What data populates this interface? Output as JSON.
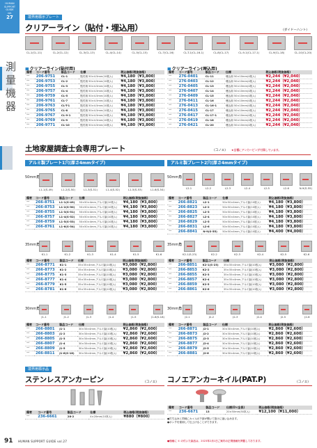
{
  "header": {
    "badge_lines": [
      "HUMAN",
      "SUPPORT",
      "GUIDE",
      "vol."
    ],
    "badge_num": "27",
    "section_tag": "境界用標示プレート",
    "title": "クリアーライン（貼付・埋込用）",
    "maker": "(ダイドーハント)"
  },
  "side_label": "測量機器",
  "clear_photos": [
    "CL-1(CL-11)",
    "CL-2(CL-12)",
    "CL-3(CL-13)",
    "CL-4(CL-14)",
    "CL-5(CL-15)",
    "CL-7(CL-16)",
    "CL-T-1(CL-16-1)",
    "CL-8(CL-17)",
    "CL-9-1(CL-17-1)",
    "CL-9(CL-18)",
    "CL-10(CL-20)"
  ],
  "clear_left": {
    "heading": "クリアーライン(貼付用)",
    "cols": [
      "備考",
      "コード番号",
      "製品コード",
      "仕様",
      "税込価格(税抜価格)"
    ],
    "rows": [
      [
        "—",
        "206-9751",
        "CL-1",
        "貼付用 50×4.5mm(10枚入)",
        "¥4,180（¥3,800）"
      ],
      [
        "—",
        "206-9753",
        "CL-2",
        "貼付用 50×4.5mm(10枚入)",
        "¥4,180（¥3,800）"
      ],
      [
        "—",
        "206-9755",
        "CL-3",
        "貼付用 50×4.5mm(10枚入)",
        "¥4,180（¥3,800）"
      ],
      [
        "—",
        "206-9757",
        "CL-4",
        "貼付用 50×4.5mm(10枚入)",
        "¥4,180（¥3,800）"
      ],
      [
        "—",
        "206-9759",
        "CL-5",
        "貼付用 50×4.5mm(10枚入)",
        "¥4,180（¥3,800）"
      ],
      [
        "—",
        "206-9761",
        "CL-7",
        "貼付用 50×4.5mm(10枚入)",
        "¥4,180（¥3,800）"
      ],
      [
        "—",
        "206-9763",
        "CL-T-1",
        "貼付用 50×4.5mm(10枚入)",
        "¥4,180（¥3,800）"
      ],
      [
        "—",
        "206-9765",
        "CL-8",
        "貼付用 50×4.5mm(10枚入)",
        "¥4,180（¥3,800）"
      ],
      [
        "—",
        "206-9767",
        "CL-9-1",
        "貼付用 50×4.5mm(10枚入)",
        "¥4,180（¥3,800）"
      ],
      [
        "—",
        "206-9769",
        "CL-9",
        "貼付用 50×4.5mm(10枚入)",
        "¥4,180（¥3,800）"
      ],
      [
        "—",
        "206-9771",
        "CL-10",
        "貼付用 50×4.5mm(10枚入)",
        "¥4,180（¥3,800）"
      ]
    ]
  },
  "clear_right": {
    "heading": "クリアーライン(埋込用)",
    "cols": [
      "備考",
      "コード番号",
      "製品コード",
      "仕様",
      "税込価格(税抜価格)"
    ],
    "rows": [
      [
        "—",
        "276-0401",
        "CL-11",
        "埋込用 50×10mm(4枚入)",
        "¥2,244（¥2,040）"
      ],
      [
        "—",
        "276-0403",
        "CL-12",
        "埋込用 50×10mm(4枚入)",
        "¥2,244（¥2,040）"
      ],
      [
        "—",
        "276-0405",
        "CL-13",
        "埋込用 50×10mm(4枚入)",
        "¥2,244（¥2,040）"
      ],
      [
        "—",
        "276-0407",
        "CL-14",
        "埋込用 50×10mm(4枚入)",
        "¥2,244（¥2,040）"
      ],
      [
        "—",
        "276-0409",
        "CL-15",
        "埋込用 50×10mm(4枚入)",
        "¥2,244（¥2,040）"
      ],
      [
        "—",
        "276-0411",
        "CL-16",
        "埋込用 50×10mm(4枚入)",
        "¥2,244（¥2,040）"
      ],
      [
        "—",
        "276-0413",
        "CL-16-1",
        "埋込用 50×10mm(4枚入)",
        "¥2,244（¥2,040）"
      ],
      [
        "—",
        "276-0415",
        "CL-17",
        "埋込用 50×10mm(4枚入)",
        "¥2,244（¥2,040）"
      ],
      [
        "—",
        "276-0417",
        "CL-17-1",
        "埋込用 50×10mm(4枚入)",
        "¥2,244（¥2,040）"
      ],
      [
        "—",
        "276-0419",
        "CL-18",
        "埋込用 50×10mm(4枚入)",
        "¥2,244（¥2,040）"
      ],
      [
        "—",
        "276-0421",
        "CL-20",
        "埋込用 50×10mm(4枚入)",
        "¥2,244（¥2,040）"
      ]
    ]
  },
  "plate": {
    "title": "土地家屋調査士会専用プレート",
    "maker": "(コノエ)",
    "note": "★全種にアンカーピンが付属しています。",
    "left_bar": "アルミ製プレート1穴(厚さ4mmタイプ)",
    "right_bar": "アルミ製プレート2穴(厚さ4mmタイプ)",
    "sizes": {
      "s50": "50mm角",
      "s35": "35mm角",
      "s30": "30mm角"
    },
    "photos50_left": [
      "L1-1(S-49)",
      "L1-2(S-50)",
      "L1-3(S-51)",
      "L1-4(S-52)",
      "L1-5(S-53)",
      "L1-6(S-54)"
    ],
    "photos50_right": [
      "L2-1",
      "L2-2",
      "L2-3",
      "L2-4",
      "L2-5",
      "L2-6",
      "N-9(S-55)"
    ],
    "photos35_left": [
      "K1-1",
      "K1-2",
      "K1-3",
      "K1-4",
      "K1-5",
      "K1-6"
    ],
    "photos35_right": [
      "K2-1(S-23)",
      "K2-2",
      "K2-3",
      "K2-4",
      "K2-5",
      "K2-6"
    ],
    "photos30_left": [
      "J1-1",
      "J1-2",
      "J1-3",
      "J1-4",
      "J1-5",
      "J1-6(S-18)"
    ],
    "photos30_right": [
      "J2-1",
      "J2-2",
      "J2-3",
      "J2-4",
      "J2-5",
      "J2-6"
    ],
    "cols": [
      "備考",
      "コード番号",
      "製品コード",
      "仕様",
      "税込価格(税抜価格)"
    ],
    "t50l": [
      [
        "—",
        "266-8751",
        "L1-1(S-49)",
        "50×50×4mm,アルミ製(10枚入)",
        "¥4,180（¥3,800）"
      ],
      [
        "—",
        "266-8753",
        "L1-2(S-50)",
        "50×50×4mm,アルミ製(10枚入)",
        "¥4,180（¥3,800）"
      ],
      [
        "—",
        "266-8755",
        "L1-3(S-51)",
        "50×50×4mm,アルミ製(10枚入)",
        "¥4,180（¥3,800）"
      ],
      [
        "—",
        "266-8757",
        "L1-4(S-52)",
        "50×50×4mm,アルミ製(10枚入)",
        "¥4,180（¥3,800）"
      ],
      [
        "—",
        "266-8759",
        "L1-5(S-53)",
        "50×50×4mm,アルミ製(10枚入)",
        "¥4,180（¥3,800）"
      ],
      [
        "—",
        "266-8761",
        "L1-6(S-54)",
        "50×50×4mm,アルミ製(10枚入)",
        "¥4,180（¥3,800）"
      ]
    ],
    "t50r": [
      [
        "—",
        "266-8821",
        "L2-1",
        "50×50×4mm,アルミ製(10枚入)",
        "¥4,180（¥3,800）"
      ],
      [
        "—",
        "266-8823",
        "L2-2",
        "50×50×4mm,アルミ製(10枚入)",
        "¥4,180（¥3,800）"
      ],
      [
        "—",
        "266-8825",
        "L2-3",
        "50×50×4mm,アルミ製(10枚入)",
        "¥4,180（¥3,800）"
      ],
      [
        "—",
        "266-8827",
        "L2-4",
        "50×50×4mm,アルミ製(10枚入)",
        "¥4,180（¥3,800）"
      ],
      [
        "—",
        "266-8829",
        "L2-5",
        "50×50×4mm,アルミ製(10枚入)",
        "¥4,180（¥3,800）"
      ],
      [
        "—",
        "266-8831",
        "L2-6",
        "50×50×4mm,アルミ製(10枚入)",
        "¥4,180（¥3,800）"
      ],
      [
        "—",
        "266-8841",
        "N-9(S-55)",
        "50×50×4mm,アルミ製(10枚入)",
        "¥4,400（¥4,000）"
      ]
    ],
    "t35l": [
      [
        "—",
        "266-8771",
        "K1-1",
        "35×35×4mm,アルミ製(10枚入)",
        "¥3,080（¥2,800）"
      ],
      [
        "—",
        "266-8773",
        "K1-2",
        "35×35×4mm,アルミ製(10枚入)",
        "¥3,080（¥2,800）"
      ],
      [
        "—",
        "266-8775",
        "K1-3",
        "35×35×4mm,アルミ製(10枚入)",
        "¥3,080（¥2,800）"
      ],
      [
        "—",
        "266-8777",
        "K1-4",
        "35×35×4mm,アルミ製(10枚入)",
        "¥3,080（¥2,800）"
      ],
      [
        "—",
        "266-8779",
        "K1-5",
        "35×35×4mm,アルミ製(10枚入)",
        "¥3,080（¥2,800）"
      ],
      [
        "—",
        "266-8781",
        "K1-6",
        "35×35×4mm,アルミ製(10枚入)",
        "¥3,080（¥2,800）"
      ]
    ],
    "t35r": [
      [
        "—",
        "266-8851",
        "K2-1(S-23)",
        "35×35×4mm,アルミ製(10枚入)",
        "¥3,080（¥2,800）"
      ],
      [
        "—",
        "266-8853",
        "K2-2",
        "35×35×4mm,アルミ製(10枚入)",
        "¥3,080（¥2,800）"
      ],
      [
        "—",
        "266-8855",
        "K2-3",
        "35×35×4mm,アルミ製(10枚入)",
        "¥3,080（¥2,800）"
      ],
      [
        "—",
        "266-8857",
        "K2-4",
        "35×35×4mm,アルミ製(10枚入)",
        "¥3,080（¥2,800）"
      ],
      [
        "—",
        "266-8859",
        "K2-5",
        "35×35×4mm,アルミ製(10枚入)",
        "¥3,080（¥2,800）"
      ],
      [
        "—",
        "266-8861",
        "K2-6",
        "35×35×4mm,アルミ製(10枚入)",
        "¥3,080（¥2,800）"
      ]
    ],
    "t30l": [
      [
        "—",
        "266-8801",
        "J1-1",
        "30×30×4mm,アルミ製(10枚入)",
        "¥2,860（¥2,600）"
      ],
      [
        "—",
        "266-8803",
        "J1-2",
        "30×30×4mm,アルミ製(10枚入)",
        "¥2,860（¥2,600）"
      ],
      [
        "—",
        "266-8805",
        "J1-3",
        "30×30×4mm,アルミ製(10枚入)",
        "¥2,860（¥2,600）"
      ],
      [
        "—",
        "266-8807",
        "J1-4",
        "30×30×4mm,アルミ製(10枚入)",
        "¥2,860（¥2,600）"
      ],
      [
        "—",
        "266-8809",
        "J1-5",
        "30×30×4mm,アルミ製(10枚入)",
        "¥2,860（¥2,600）"
      ],
      [
        "—",
        "266-8811",
        "J1-6(S-18)",
        "30×30×4mm,アルミ製(10枚入)",
        "¥2,860（¥2,600）"
      ]
    ],
    "t30r": [
      [
        "—",
        "266-8871",
        "J2-1",
        "30×30×4mm,アルミ製(10枚入)",
        "¥2,860（¥2,600）"
      ],
      [
        "—",
        "266-8873",
        "J2-2",
        "30×30×4mm,アルミ製(10枚入)",
        "¥2,860（¥2,600）"
      ],
      [
        "—",
        "266-8875",
        "J2-3",
        "30×30×4mm,アルミ製(10枚入)",
        "¥2,860（¥2,600）"
      ],
      [
        "—",
        "266-8877",
        "J2-4",
        "30×30×4mm,アルミ製(10枚入)",
        "¥2,860（¥2,600）"
      ],
      [
        "—",
        "266-8879",
        "J2-5",
        "30×30×4mm,アルミ製(10枚入)",
        "¥2,860（¥2,600）"
      ],
      [
        "—",
        "266-8881",
        "J2-6",
        "30×30×4mm,アルミ製(10枚入)",
        "¥2,860（¥2,600）"
      ]
    ]
  },
  "bottom": {
    "tag": "境界用標示品",
    "left_title": "ステンレスアンカーピン",
    "left_maker": "(コノエ)",
    "left_cols": [
      "備考",
      "コード番号",
      "製品コード",
      "仕様",
      "税込価格(税抜価格)"
    ],
    "left_row": [
      "—",
      "236-6661",
      "28-2",
      "4×20mm(10本入)",
      "¥880（¥800）"
    ],
    "right_title": "コノエアンカーネイル(PAT.P)",
    "right_maker": "(コノエ)",
    "right_cols": [
      "備考",
      "コード番号",
      "製品コード",
      "仕様(D×全長)",
      "税込価格(税抜価格)"
    ],
    "right_row": [
      "—",
      "236-6671",
      "13",
      "20×50mm(50本入)",
      "¥12,100（¥11,000）"
    ],
    "right_notes": [
      "●打ち込みと同時にカイルの下部が開いて抜けに強い込みます。",
      "●ポンチを使用して仕上げることができます。"
    ]
  },
  "footer": {
    "page": "91",
    "pub": "HUMAN SUPPORT GUIDE vol.27",
    "notice": "●価格に ① の付いた製品は、2023年2月1日ご案内の正規価格を掲載しております。"
  },
  "colors": {
    "accent": "#2a86c8",
    "price_red": "#cc0022",
    "code_blue": "#1a6fb5"
  }
}
